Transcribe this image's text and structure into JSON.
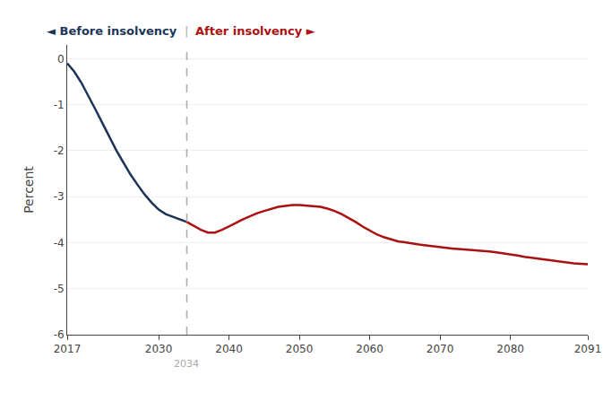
{
  "chart_data": {
    "type": "line",
    "ylabel": "Percent",
    "series": [
      {
        "color": "#1c3557",
        "x": [
          2017,
          2018,
          2019,
          2020,
          2021,
          2022,
          2023,
          2024,
          2025,
          2026,
          2027,
          2028,
          2029,
          2030,
          2031,
          2032,
          2033,
          2034
        ],
        "values": [
          -0.1,
          -0.28,
          -0.52,
          -0.8,
          -1.1,
          -1.4,
          -1.7,
          -2.0,
          -2.26,
          -2.52,
          -2.74,
          -2.95,
          -3.13,
          -3.28,
          -3.38,
          -3.44,
          -3.5,
          -3.55
        ]
      },
      {
        "color": "#aa1111",
        "x": [
          2034,
          2035,
          2036,
          2037,
          2038,
          2039,
          2040,
          2041,
          2042,
          2043,
          2044,
          2045,
          2046,
          2047,
          2048,
          2049,
          2050,
          2051,
          2052,
          2053,
          2054,
          2055,
          2056,
          2057,
          2058,
          2059,
          2060,
          2061,
          2062,
          2063,
          2064,
          2065,
          2066,
          2067,
          2068,
          2069,
          2070,
          2071,
          2072,
          2073,
          2074,
          2075,
          2076,
          2077,
          2078,
          2079,
          2080,
          2081,
          2082,
          2083,
          2084,
          2085,
          2086,
          2087,
          2088,
          2089,
          2090,
          2091
        ],
        "values": [
          -3.55,
          -3.63,
          -3.72,
          -3.78,
          -3.78,
          -3.72,
          -3.65,
          -3.57,
          -3.49,
          -3.42,
          -3.36,
          -3.31,
          -3.26,
          -3.22,
          -3.2,
          -3.18,
          -3.18,
          -3.19,
          -3.2,
          -3.22,
          -3.26,
          -3.31,
          -3.38,
          -3.46,
          -3.55,
          -3.65,
          -3.74,
          -3.82,
          -3.88,
          -3.93,
          -3.97,
          -3.99,
          -4.02,
          -4.04,
          -4.06,
          -4.08,
          -4.1,
          -4.11,
          -4.13,
          -4.14,
          -4.15,
          -4.16,
          -4.17,
          -4.19,
          -4.21,
          -4.23,
          -4.25,
          -4.28,
          -4.31,
          -4.33,
          -4.36,
          -4.38,
          -4.4,
          -4.42,
          -4.43,
          -4.45,
          -4.46,
          -4.47
        ]
      }
    ],
    "xlim": [
      2017,
      2091
    ],
    "ylim": [
      -6,
      0.3
    ],
    "xticks": [
      2017,
      2030,
      2040,
      2050,
      2060,
      2070,
      2080,
      2091
    ],
    "yticks": [
      0,
      -1,
      -2,
      -3,
      -4,
      -5,
      -6
    ],
    "grid": "y",
    "reference_line": {
      "x": 2034,
      "label": "2034",
      "color": "#aaaaaa",
      "line_style": "dashed"
    },
    "annotations": [
      {
        "text": "◄ Before insolvency",
        "color": "#1c3557"
      },
      {
        "text": "|",
        "color": "#aaaaaa"
      },
      {
        "text": "After insolvency ►",
        "color": "#aa1111"
      }
    ]
  }
}
